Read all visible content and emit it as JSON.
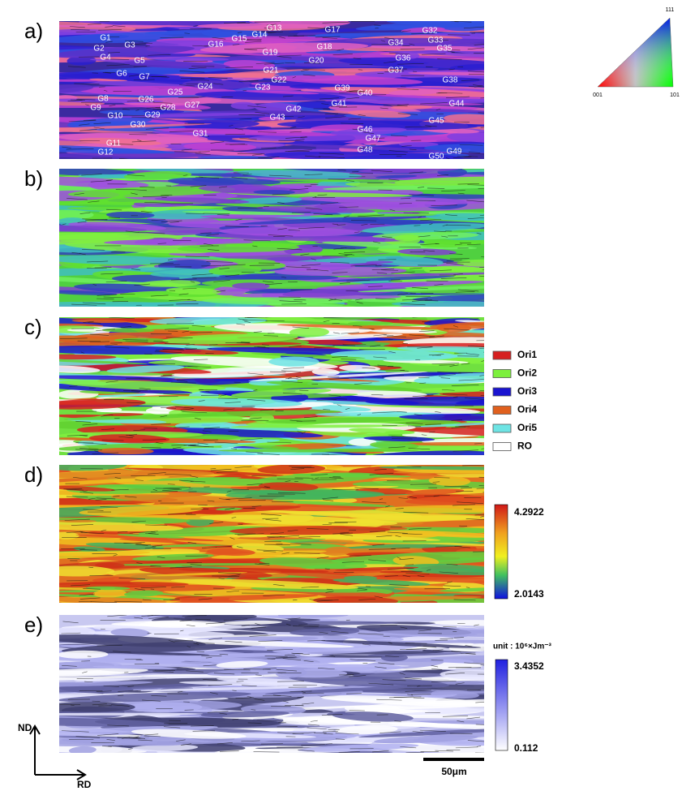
{
  "panels": [
    {
      "label": "a)"
    },
    {
      "label": "b)"
    },
    {
      "label": "c)"
    },
    {
      "label": "d)"
    },
    {
      "label": "e)"
    }
  ],
  "grain_labels": [
    "G1",
    "G2",
    "G3",
    "G4",
    "G5",
    "G6",
    "G7",
    "G8",
    "G9",
    "G10",
    "G11",
    "G12",
    "G13",
    "G14",
    "G15",
    "G16",
    "G17",
    "G18",
    "G19",
    "G20",
    "G21",
    "G22",
    "G23",
    "G24",
    "G25",
    "G26",
    "G27",
    "G28",
    "G29",
    "G30",
    "G31",
    "G32",
    "G33",
    "G34",
    "G35",
    "G36",
    "G37",
    "G38",
    "G39",
    "G40",
    "G41",
    "G42",
    "G43",
    "G44",
    "G45",
    "G46",
    "G47",
    "G48",
    "G49",
    "G50"
  ],
  "ipf_key": {
    "top": "111",
    "left": "001",
    "right": "101"
  },
  "legend": {
    "items": [
      "Ori1",
      "Ori2",
      "Ori3",
      "Ori4",
      "Ori5",
      "RO"
    ]
  },
  "colorbar_d": {
    "max": 4.2922,
    "min": 2.0143
  },
  "colorbar_e": {
    "unit": "unit : 10⁶×Jm⁻³",
    "max": 3.4352,
    "min": 0.112
  },
  "scale_bar": "50μm",
  "axes": {
    "vertical": "ND",
    "horizontal": "RD"
  }
}
